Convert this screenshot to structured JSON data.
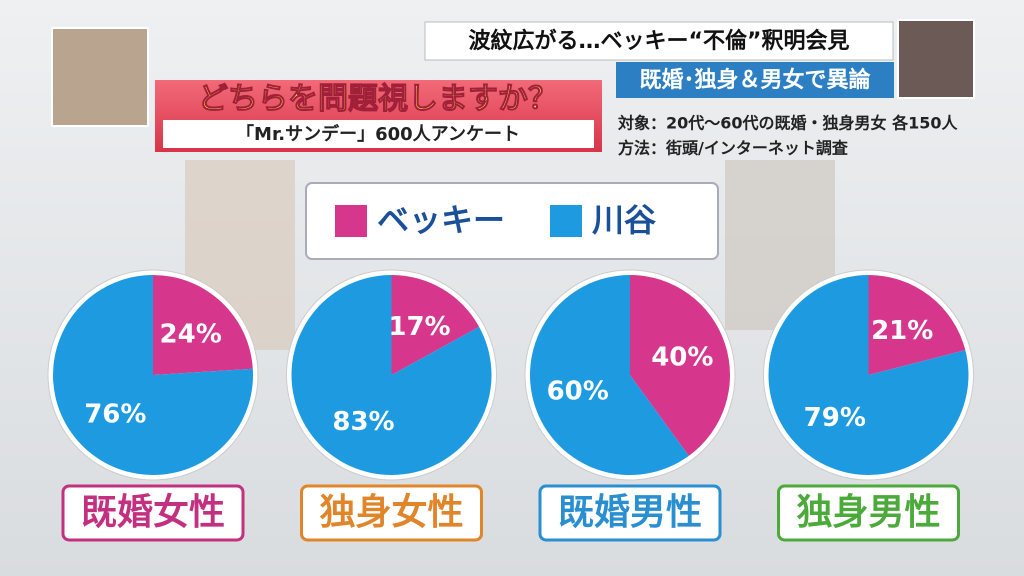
{
  "headline": "波紋広がる…ベッキー“不倫”釈明会見",
  "subheadline": "既婚･独身＆男女で異論",
  "question": "どちらを問題視しますか？",
  "survey": "「Mr.サンデー」600人アンケート",
  "notes": [
    "対象：20代～60代の既婚・独身男女 各150人",
    "方法：街頭/インターネット調査"
  ],
  "legend": [
    {
      "name": "ベッキー",
      "color": "#d6378c"
    },
    {
      "name": "川谷",
      "color": "#1e9be0"
    }
  ],
  "chart_data": [
    {
      "type": "pie",
      "title": "既婚女性",
      "color": "#c2307f",
      "values": [
        24,
        76
      ],
      "value_labels": [
        "24%",
        "76%"
      ]
    },
    {
      "type": "pie",
      "title": "独身女性",
      "color": "#e0852a",
      "values": [
        17,
        83
      ],
      "value_labels": [
        "17%",
        "83%"
      ]
    },
    {
      "type": "pie",
      "title": "既婚男性",
      "color": "#2a8fd0",
      "values": [
        40,
        60
      ],
      "value_labels": [
        "40%",
        "60%"
      ]
    },
    {
      "type": "pie",
      "title": "独身男性",
      "color": "#4caa3a",
      "values": [
        21,
        79
      ],
      "value_labels": [
        "21%",
        "79%"
      ]
    }
  ]
}
